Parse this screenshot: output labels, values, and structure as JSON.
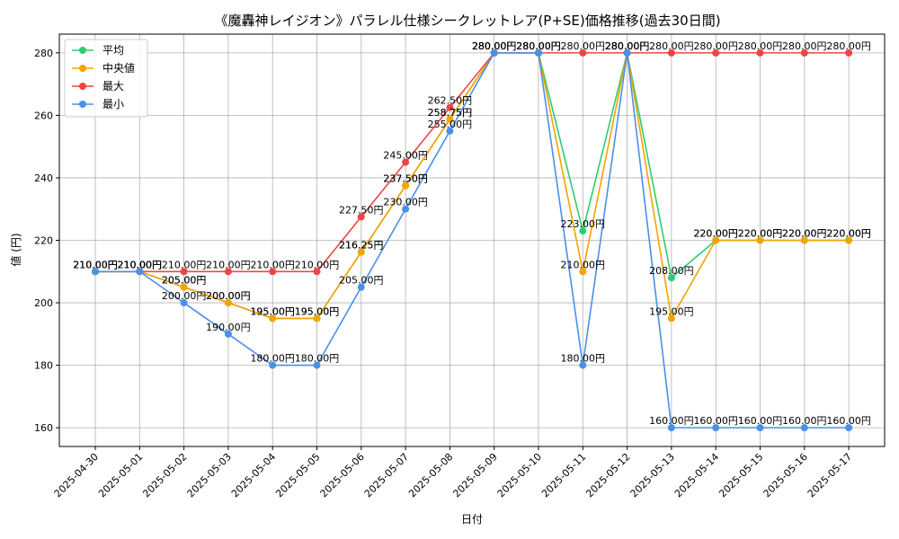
{
  "chart_data": {
    "type": "line",
    "title": "《魔轟神レイジオン》パラレル仕様シークレットレア(P+SE)価格推移(過去30日間)",
    "xlabel": "日付",
    "ylabel": "値 (円)",
    "ylim": [
      154,
      286
    ],
    "yticks": [
      160,
      180,
      200,
      220,
      240,
      260,
      280
    ],
    "grid": true,
    "legend_position": "top-left",
    "label_suffix": "円",
    "categories": [
      "2025-04-30",
      "2025-05-01",
      "2025-05-02",
      "2025-05-03",
      "2025-05-04",
      "2025-05-05",
      "2025-05-06",
      "2025-05-07",
      "2025-05-08",
      "2025-05-09",
      "2025-05-10",
      "2025-05-11",
      "2025-05-12",
      "2025-05-13",
      "2025-05-14",
      "2025-05-15",
      "2025-05-16",
      "2025-05-17"
    ],
    "series": [
      {
        "name": "平均",
        "color": "#2ecc71",
        "values": [
          210,
          210,
          205,
          200,
          195,
          195,
          216.25,
          237.5,
          258.75,
          280,
          280,
          223,
          280,
          208,
          220,
          220,
          220,
          220
        ]
      },
      {
        "name": "中央値",
        "color": "#f5a300",
        "values": [
          210,
          210,
          205,
          200,
          195,
          195,
          216.25,
          237.5,
          258.75,
          280,
          280,
          210,
          280,
          195,
          220,
          220,
          220,
          220
        ]
      },
      {
        "name": "最大",
        "color": "#ef4444",
        "values": [
          210,
          210,
          210,
          210,
          210,
          210,
          227.5,
          245,
          262.5,
          280,
          280,
          280,
          280,
          280,
          280,
          280,
          280,
          280
        ]
      },
      {
        "name": "最小",
        "color": "#4a90e8",
        "values": [
          210,
          210,
          200,
          190,
          180,
          180,
          205,
          230,
          255,
          280,
          280,
          180,
          280,
          160,
          160,
          160,
          160,
          160
        ]
      }
    ]
  }
}
